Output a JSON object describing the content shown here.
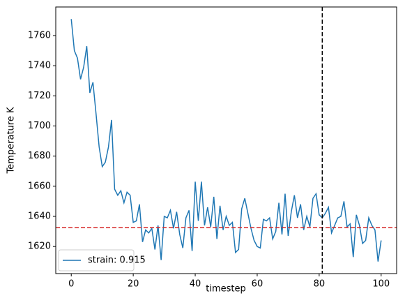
{
  "chart_data": {
    "type": "line",
    "xlabel": "timestep",
    "ylabel": "Temperature K",
    "x": [
      0,
      1,
      2,
      3,
      4,
      5,
      6,
      7,
      8,
      9,
      10,
      11,
      12,
      13,
      14,
      15,
      16,
      17,
      18,
      19,
      20,
      21,
      22,
      23,
      24,
      25,
      26,
      27,
      28,
      29,
      30,
      31,
      32,
      33,
      34,
      35,
      36,
      37,
      38,
      39,
      40,
      41,
      42,
      43,
      44,
      45,
      46,
      47,
      48,
      49,
      50,
      51,
      52,
      53,
      54,
      55,
      56,
      57,
      58,
      59,
      60,
      61,
      62,
      63,
      64,
      65,
      66,
      67,
      68,
      69,
      70,
      71,
      72,
      73,
      74,
      75,
      76,
      77,
      78,
      79,
      80,
      81,
      82,
      83,
      84,
      85,
      86,
      87,
      88,
      89,
      90,
      91,
      92,
      93,
      94,
      95,
      96,
      97,
      98,
      99,
      100
    ],
    "series": [
      {
        "name": "strain: 0.915",
        "color": "#1f77b4",
        "values": [
          1771,
          1750,
          1745,
          1731,
          1739,
          1753,
          1722,
          1729,
          1708,
          1686,
          1673,
          1676,
          1686,
          1704,
          1658,
          1654,
          1657,
          1649,
          1656,
          1654,
          1636,
          1637,
          1648,
          1623,
          1631,
          1629,
          1632,
          1618,
          1634,
          1611,
          1640,
          1639,
          1644,
          1632,
          1643,
          1628,
          1619,
          1639,
          1644,
          1617,
          1663,
          1637,
          1663,
          1634,
          1646,
          1633,
          1653,
          1625,
          1647,
          1631,
          1640,
          1634,
          1636,
          1616,
          1618,
          1645,
          1652,
          1642,
          1632,
          1624,
          1620,
          1619,
          1638,
          1637,
          1639,
          1625,
          1630,
          1649,
          1628,
          1655,
          1627,
          1643,
          1654,
          1639,
          1648,
          1631,
          1640,
          1633,
          1652,
          1655,
          1641,
          1639,
          1642,
          1646,
          1629,
          1634,
          1639,
          1640,
          1650,
          1633,
          1635,
          1613,
          1641,
          1634,
          1622,
          1624,
          1639,
          1634,
          1631,
          1610,
          1624
        ]
      }
    ],
    "hlines": [
      {
        "y": 1632.5,
        "color": "#d62728"
      }
    ],
    "vlines": [
      {
        "x": 81,
        "color": "#000000"
      }
    ],
    "xlim": [
      -5,
      105
    ],
    "xticks": [
      0,
      20,
      40,
      60,
      80,
      100
    ],
    "ylim": [
      1602,
      1779
    ],
    "yticks": [
      1620,
      1640,
      1660,
      1680,
      1700,
      1720,
      1740,
      1760
    ],
    "legend": "lower left"
  }
}
